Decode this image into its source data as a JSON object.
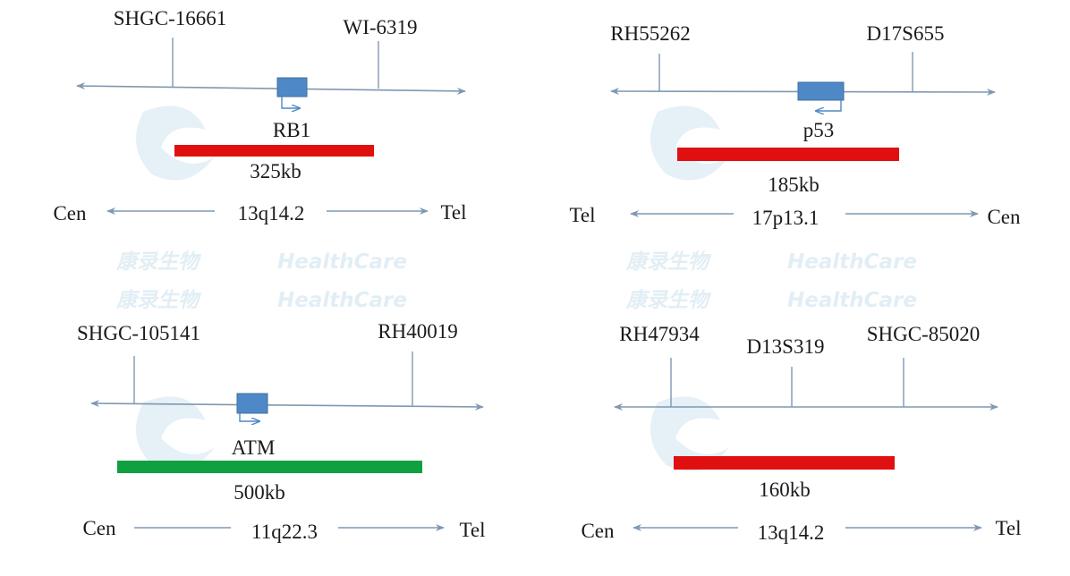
{
  "watermark": {
    "cn": "康录生物",
    "en": "HealthCare"
  },
  "colors": {
    "probe_red": "#e01010",
    "probe_green": "#10a040",
    "gene_box": "#4f88c6",
    "line": "#7f98b3"
  },
  "panels": [
    {
      "markers": [
        "SHGC-16661",
        "WI-6319"
      ],
      "gene": "RB1",
      "size": "325kb",
      "left_end": "Cen",
      "band": "13q14.2",
      "right_end": "Tel",
      "probe_color": "red"
    },
    {
      "markers": [
        "RH55262",
        "D17S655"
      ],
      "gene": "p53",
      "size": "185kb",
      "left_end": "Tel",
      "band": "17p13.1",
      "right_end": "Cen",
      "probe_color": "red"
    },
    {
      "markers": [
        "SHGC-105141",
        "RH40019"
      ],
      "gene": "ATM",
      "size": "500kb",
      "left_end": "Cen",
      "band": "11q22.3",
      "right_end": "Tel",
      "probe_color": "green"
    },
    {
      "markers": [
        "RH47934",
        "D13S319",
        "SHGC-85020"
      ],
      "size": "160kb",
      "left_end": "Cen",
      "band": "13q14.2",
      "right_end": "Tel",
      "probe_color": "red"
    }
  ]
}
